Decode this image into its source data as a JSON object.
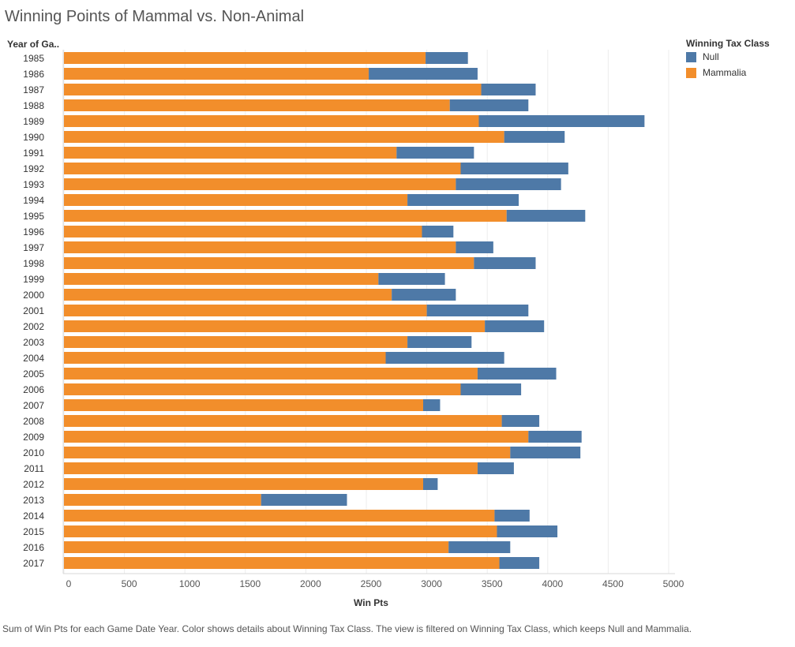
{
  "title": "Winning Points of Mammal vs. Non-Animal",
  "caption": "Sum of Win Pts for each Game Date Year.  Color shows details about Winning Tax Class. The view is filtered on Winning Tax Class, which keeps Null and Mammalia.",
  "colors": {
    "mammalia": "#f28e2b",
    "null": "#4e79a7"
  },
  "chart_data": {
    "type": "bar",
    "orientation": "horizontal",
    "stacked": true,
    "row_header": "Year of Ga..",
    "xlabel": "Win Pts",
    "xlim": [
      0,
      5000
    ],
    "x_ticks": [
      0,
      500,
      1000,
      1500,
      2000,
      2500,
      3000,
      3500,
      4000,
      4500,
      5000
    ],
    "grid": "vertical",
    "legend": {
      "title": "Winning Tax Class",
      "position": "right",
      "items": [
        "Null",
        "Mammalia"
      ]
    },
    "categories": [
      "1985",
      "1986",
      "1987",
      "1988",
      "1989",
      "1990",
      "1991",
      "1992",
      "1993",
      "1994",
      "1995",
      "1996",
      "1997",
      "1998",
      "1999",
      "2000",
      "2001",
      "2002",
      "2003",
      "2004",
      "2005",
      "2006",
      "2007",
      "2008",
      "2009",
      "2010",
      "2011",
      "2012",
      "2013",
      "2014",
      "2015",
      "2016",
      "2017"
    ],
    "series": [
      {
        "name": "Mammalia",
        "color": "#f28e2b",
        "values": [
          2990,
          2520,
          3450,
          3190,
          3430,
          3640,
          2750,
          3280,
          3240,
          2840,
          3660,
          2960,
          3240,
          3390,
          2600,
          2710,
          3000,
          3480,
          2840,
          2660,
          3420,
          3280,
          2970,
          3620,
          3840,
          3690,
          3420,
          2970,
          1630,
          3560,
          3580,
          3180,
          3600
        ]
      },
      {
        "name": "Null",
        "color": "#4e79a7",
        "values": [
          350,
          900,
          450,
          650,
          1370,
          500,
          640,
          890,
          870,
          920,
          650,
          260,
          310,
          510,
          550,
          530,
          840,
          490,
          530,
          980,
          650,
          500,
          140,
          310,
          440,
          580,
          300,
          120,
          710,
          290,
          500,
          510,
          330
        ]
      }
    ]
  }
}
